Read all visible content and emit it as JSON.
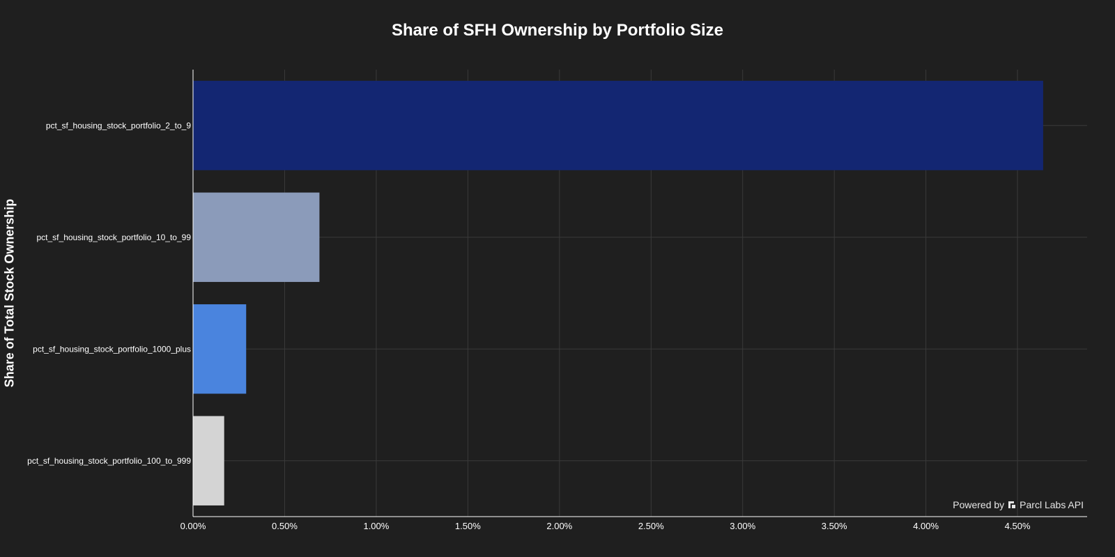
{
  "chart_data": {
    "type": "bar",
    "orientation": "horizontal",
    "title": "Share of SFH Ownership by Portfolio Size",
    "ylabel": "Share of Total Stock Ownership",
    "xlabel": "",
    "xlim": [
      0,
      4.88
    ],
    "xticks": [
      0,
      0.5,
      1.0,
      1.5,
      2.0,
      2.5,
      3.0,
      3.5,
      4.0,
      4.5
    ],
    "xtick_labels": [
      "0.00%",
      "0.50%",
      "1.00%",
      "1.50%",
      "2.00%",
      "2.50%",
      "3.00%",
      "3.50%",
      "4.00%",
      "4.50%"
    ],
    "grid": true,
    "categories": [
      "pct_sf_housing_stock_portfolio_2_to_9",
      "pct_sf_housing_stock_portfolio_10_to_99",
      "pct_sf_housing_stock_portfolio_1000_plus",
      "pct_sf_housing_stock_portfolio_100_to_999"
    ],
    "values": [
      4.64,
      0.69,
      0.29,
      0.17
    ],
    "colors": [
      "#132672",
      "#8b9bba",
      "#4a84de",
      "#d4d4d4"
    ]
  },
  "colors": {
    "background": "#1f1f1f",
    "grid": "#3a3a3a",
    "axis": "#ffffff",
    "text": "#ffffff"
  },
  "watermark": {
    "prefix": "Powered by",
    "brand": "Parcl Labs API",
    "logo_icon": "parcl-logo-icon"
  }
}
